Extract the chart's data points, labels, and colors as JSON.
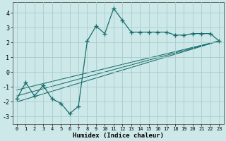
{
  "xlabel": "Humidex (Indice chaleur)",
  "background_color": "#cce8e8",
  "grid_color": "#aacccc",
  "line_color": "#1a6e6e",
  "xlim": [
    -0.5,
    23.5
  ],
  "ylim": [
    -3.5,
    4.7
  ],
  "xticks": [
    0,
    1,
    2,
    3,
    4,
    5,
    6,
    7,
    8,
    9,
    10,
    11,
    12,
    13,
    14,
    15,
    16,
    17,
    18,
    19,
    20,
    21,
    22,
    23
  ],
  "yticks": [
    -3,
    -2,
    -1,
    0,
    1,
    2,
    3,
    4
  ],
  "main_series": {
    "x": [
      0,
      1,
      2,
      3,
      4,
      5,
      6,
      7,
      8,
      9,
      10,
      11,
      12,
      13,
      14,
      15,
      16,
      17,
      18,
      19,
      20,
      21,
      22,
      23
    ],
    "y": [
      -1.8,
      -0.7,
      -1.6,
      -0.9,
      -1.8,
      -2.1,
      -2.8,
      -2.3,
      2.1,
      3.1,
      2.6,
      4.3,
      3.5,
      2.7,
      2.7,
      2.7,
      2.7,
      2.7,
      2.5,
      2.5,
      2.6,
      2.6,
      2.6,
      2.1
    ]
  },
  "regression_lines": [
    {
      "x": [
        0,
        23
      ],
      "y": [
        -2.0,
        2.1
      ]
    },
    {
      "x": [
        0,
        23
      ],
      "y": [
        -1.6,
        2.1
      ]
    },
    {
      "x": [
        0,
        23
      ],
      "y": [
        -1.2,
        2.1
      ]
    }
  ]
}
